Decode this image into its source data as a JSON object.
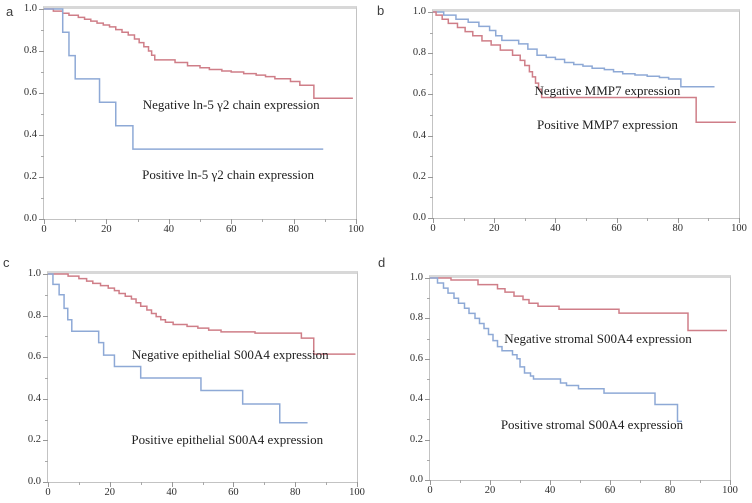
{
  "figure": {
    "background": "#ffffff",
    "colors": {
      "red": "#cf7e88",
      "blue": "#8ea9d6"
    }
  },
  "chart_data": [
    {
      "panel": "a",
      "type": "line",
      "subtype": "kaplan-meier-step",
      "title": "",
      "xlabel": "",
      "ylabel": "",
      "xlim": [
        0,
        100
      ],
      "ylim": [
        0,
        1
      ],
      "x_ticks": [
        0,
        20,
        40,
        60,
        80,
        100
      ],
      "x_minor_ticks": [
        10,
        30,
        50,
        70,
        90
      ],
      "y_ticks": [
        1.0,
        0.8,
        0.6,
        0.4,
        0.2,
        0.0
      ],
      "y_minor_ticks": [
        0.9,
        0.7,
        0.5,
        0.3,
        0.1
      ],
      "grid": false,
      "legend_position": "none",
      "series": [
        {
          "id": "negative",
          "name": "Negative ln-5 γ2 chain expression",
          "color": "red",
          "points": [
            [
              0,
              1
            ],
            [
              3,
              0.99
            ],
            [
              6,
              0.98
            ],
            [
              8,
              0.97
            ],
            [
              11,
              0.96
            ],
            [
              13,
              0.951
            ],
            [
              15,
              0.942
            ],
            [
              17,
              0.933
            ],
            [
              19,
              0.924
            ],
            [
              21,
              0.915
            ],
            [
              23,
              0.902
            ],
            [
              25,
              0.889
            ],
            [
              27,
              0.876
            ],
            [
              29,
              0.857
            ],
            [
              30.5,
              0.84
            ],
            [
              32,
              0.82
            ],
            [
              33.5,
              0.8
            ],
            [
              34.5,
              0.78
            ],
            [
              35.5,
              0.758
            ],
            [
              42,
              0.745
            ],
            [
              46,
              0.73
            ],
            [
              50,
              0.72
            ],
            [
              53,
              0.712
            ],
            [
              57,
              0.705
            ],
            [
              60,
              0.7
            ],
            [
              64,
              0.692
            ],
            [
              68,
              0.685
            ],
            [
              71,
              0.678
            ],
            [
              74,
              0.668
            ],
            [
              79,
              0.655
            ],
            [
              82,
              0.637
            ],
            [
              86.5,
              0.575
            ],
            [
              99,
              0.575
            ]
          ]
        },
        {
          "id": "positive",
          "name": "Positive ln-5 γ2 chain expression",
          "color": "blue",
          "points": [
            [
              0,
              1
            ],
            [
              6,
              0.889
            ],
            [
              8,
              0.778
            ],
            [
              10,
              0.667
            ],
            [
              17.8,
              0.556
            ],
            [
              23,
              0.444
            ],
            [
              28.5,
              0.333
            ],
            [
              89.5,
              0.333
            ]
          ]
        }
      ],
      "annotations": [
        {
          "text": "Negative ln-5 γ2 chain expression",
          "x": 60,
          "y": 0.545
        },
        {
          "text": "Positive ln-5 γ2 chain expression",
          "x": 59,
          "y": 0.21
        }
      ]
    },
    {
      "panel": "b",
      "type": "line",
      "subtype": "kaplan-meier-step",
      "title": "",
      "xlabel": "",
      "ylabel": "",
      "xlim": [
        0,
        100
      ],
      "ylim": [
        0,
        1
      ],
      "x_ticks": [
        0,
        20,
        40,
        60,
        80,
        100
      ],
      "x_minor_ticks": [
        10,
        30,
        50,
        70,
        90
      ],
      "y_ticks": [
        1.0,
        0.8,
        0.6,
        0.4,
        0.2,
        0.0
      ],
      "y_minor_ticks": [
        0.9,
        0.7,
        0.5,
        0.3,
        0.1
      ],
      "grid": false,
      "legend_position": "none",
      "series": [
        {
          "id": "negative",
          "name": "Negative MMP7 expression",
          "color": "blue",
          "points": [
            [
              0,
              1
            ],
            [
              3.5,
              0.985
            ],
            [
              7.5,
              0.965
            ],
            [
              11.5,
              0.95
            ],
            [
              15,
              0.93
            ],
            [
              18.5,
              0.91
            ],
            [
              20.5,
              0.885
            ],
            [
              22.5,
              0.862
            ],
            [
              28,
              0.845
            ],
            [
              31,
              0.82
            ],
            [
              34,
              0.79
            ],
            [
              37,
              0.78
            ],
            [
              40,
              0.77
            ],
            [
              43,
              0.755
            ],
            [
              46,
              0.745
            ],
            [
              49,
              0.737
            ],
            [
              52,
              0.727
            ],
            [
              56,
              0.72
            ],
            [
              59,
              0.71
            ],
            [
              62,
              0.7
            ],
            [
              66,
              0.694
            ],
            [
              70,
              0.688
            ],
            [
              74,
              0.682
            ],
            [
              77,
              0.675
            ],
            [
              81,
              0.637
            ],
            [
              92,
              0.637
            ]
          ]
        },
        {
          "id": "positive",
          "name": "Positive MMP7 expression",
          "color": "red",
          "points": [
            [
              0,
              1
            ],
            [
              1,
              0.985
            ],
            [
              3,
              0.965
            ],
            [
              5,
              0.945
            ],
            [
              8,
              0.925
            ],
            [
              10.5,
              0.905
            ],
            [
              13,
              0.885
            ],
            [
              16,
              0.86
            ],
            [
              19,
              0.84
            ],
            [
              22,
              0.815
            ],
            [
              26,
              0.79
            ],
            [
              28.5,
              0.765
            ],
            [
              30,
              0.74
            ],
            [
              31.5,
              0.71
            ],
            [
              32.5,
              0.685
            ],
            [
              33.5,
              0.655
            ],
            [
              34.5,
              0.625
            ],
            [
              35.5,
              0.585
            ],
            [
              86,
              0.465
            ],
            [
              99,
              0.465
            ]
          ]
        }
      ],
      "annotations": [
        {
          "text": "Negative MMP7 expression",
          "x": 57,
          "y": 0.617
        },
        {
          "text": "Positive MMP7 expression",
          "x": 57,
          "y": 0.45
        }
      ]
    },
    {
      "panel": "c",
      "type": "line",
      "subtype": "kaplan-meier-step",
      "title": "",
      "xlabel": "",
      "ylabel": "",
      "xlim": [
        0,
        100
      ],
      "ylim": [
        0,
        1
      ],
      "x_ticks": [
        0,
        20,
        40,
        60,
        80,
        100
      ],
      "x_minor_ticks": [
        10,
        30,
        50,
        70,
        90
      ],
      "y_ticks": [
        1.0,
        0.8,
        0.6,
        0.4,
        0.2,
        0.0
      ],
      "y_minor_ticks": [
        0.9,
        0.7,
        0.5,
        0.3,
        0.1
      ],
      "grid": false,
      "legend_position": "none",
      "series": [
        {
          "id": "negative",
          "name": "Negative epithelial S00A4 expression",
          "color": "red",
          "points": [
            [
              0,
              1
            ],
            [
              6.5,
              0.99
            ],
            [
              10,
              0.978
            ],
            [
              12.5,
              0.966
            ],
            [
              14.5,
              0.955
            ],
            [
              17,
              0.944
            ],
            [
              19.5,
              0.932
            ],
            [
              21.5,
              0.92
            ],
            [
              23,
              0.906
            ],
            [
              25,
              0.893
            ],
            [
              27,
              0.88
            ],
            [
              28.5,
              0.862
            ],
            [
              30,
              0.845
            ],
            [
              32,
              0.827
            ],
            [
              33.5,
              0.81
            ],
            [
              35,
              0.795
            ],
            [
              36.5,
              0.78
            ],
            [
              38,
              0.768
            ],
            [
              40.5,
              0.757
            ],
            [
              45,
              0.748
            ],
            [
              48.5,
              0.74
            ],
            [
              52,
              0.73
            ],
            [
              56,
              0.722
            ],
            [
              67,
              0.716
            ],
            [
              82,
              0.692
            ],
            [
              86,
              0.615
            ],
            [
              99.5,
              0.615
            ]
          ]
        },
        {
          "id": "positive",
          "name": "Positive epithelial S00A4 expression",
          "color": "blue",
          "points": [
            [
              0,
              1
            ],
            [
              1.6,
              0.95
            ],
            [
              3.6,
              0.9
            ],
            [
              5.2,
              0.835
            ],
            [
              6.4,
              0.78
            ],
            [
              7.7,
              0.725
            ],
            [
              16.4,
              0.67
            ],
            [
              18,
              0.61
            ],
            [
              21.5,
              0.555
            ],
            [
              30,
              0.5
            ],
            [
              49.5,
              0.44
            ],
            [
              63,
              0.375
            ],
            [
              75,
              0.285
            ],
            [
              84,
              0.285
            ]
          ]
        }
      ],
      "annotations": [
        {
          "text": "Negative epithelial S00A4 expression",
          "x": 59,
          "y": 0.61
        },
        {
          "text": "Positive epithelial S00A4 expression",
          "x": 58,
          "y": 0.2
        }
      ]
    },
    {
      "panel": "d",
      "type": "line",
      "subtype": "kaplan-meier-step",
      "title": "",
      "xlabel": "",
      "ylabel": "",
      "xlim": [
        0,
        100
      ],
      "ylim": [
        0,
        1
      ],
      "x_ticks": [
        0,
        20,
        40,
        60,
        80,
        100
      ],
      "x_minor_ticks": [
        10,
        30,
        50,
        70,
        90
      ],
      "y_ticks": [
        1.0,
        0.8,
        0.6,
        0.4,
        0.2,
        0.0
      ],
      "y_minor_ticks": [
        0.9,
        0.7,
        0.5,
        0.3,
        0.1
      ],
      "grid": false,
      "legend_position": "none",
      "series": [
        {
          "id": "negative",
          "name": "Negative stromal S00A4 expression",
          "color": "red",
          "points": [
            [
              0,
              1
            ],
            [
              7,
              0.99
            ],
            [
              16,
              0.967
            ],
            [
              22.5,
              0.947
            ],
            [
              25,
              0.93
            ],
            [
              28,
              0.91
            ],
            [
              31,
              0.893
            ],
            [
              33,
              0.875
            ],
            [
              36,
              0.86
            ],
            [
              43,
              0.845
            ],
            [
              63,
              0.826
            ],
            [
              86,
              0.74
            ],
            [
              99,
              0.74
            ]
          ]
        },
        {
          "id": "positive",
          "name": "Positive stromal S00A4 expression",
          "color": "blue",
          "points": [
            [
              0,
              1
            ],
            [
              2.5,
              0.975
            ],
            [
              4.5,
              0.95
            ],
            [
              6,
              0.925
            ],
            [
              8,
              0.9
            ],
            [
              9.5,
              0.875
            ],
            [
              11.5,
              0.85
            ],
            [
              13,
              0.825
            ],
            [
              15,
              0.8
            ],
            [
              16.5,
              0.775
            ],
            [
              18,
              0.75
            ],
            [
              19.5,
              0.72
            ],
            [
              21,
              0.69
            ],
            [
              22.5,
              0.66
            ],
            [
              24,
              0.64
            ],
            [
              27.5,
              0.62
            ],
            [
              29,
              0.6
            ],
            [
              30,
              0.56
            ],
            [
              31.5,
              0.53
            ],
            [
              33.5,
              0.515
            ],
            [
              34.5,
              0.5
            ],
            [
              43.5,
              0.48
            ],
            [
              45.5,
              0.468
            ],
            [
              49.5,
              0.452
            ],
            [
              58,
              0.43
            ],
            [
              75,
              0.374
            ],
            [
              82.5,
              0.29
            ],
            [
              84,
              0.29
            ]
          ]
        }
      ],
      "annotations": [
        {
          "text": "Negative stromal S00A4 expression",
          "x": 56,
          "y": 0.7
        },
        {
          "text": "Positive stromal S00A4 expression",
          "x": 54,
          "y": 0.27
        }
      ]
    }
  ]
}
